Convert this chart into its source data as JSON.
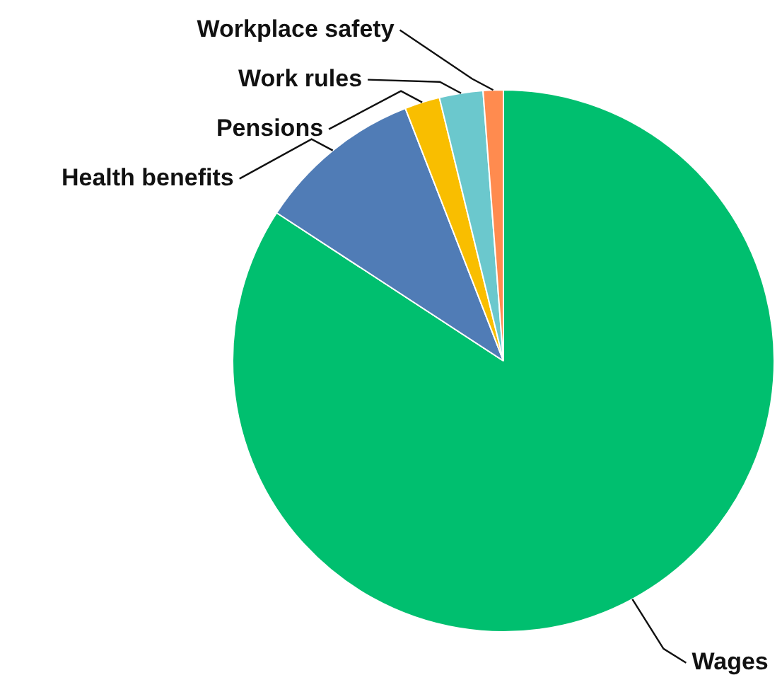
{
  "chart_data": {
    "type": "pie",
    "categories": [
      "Wages",
      "Health benefits",
      "Pensions",
      "Work rules",
      "Workplace safety"
    ],
    "values": [
      84.2,
      9.9,
      2.1,
      2.6,
      1.2
    ],
    "colors": [
      "#00bf6f",
      "#507cb6",
      "#f9be00",
      "#6bc8cd",
      "#ff8b4f"
    ],
    "legend": false
  }
}
